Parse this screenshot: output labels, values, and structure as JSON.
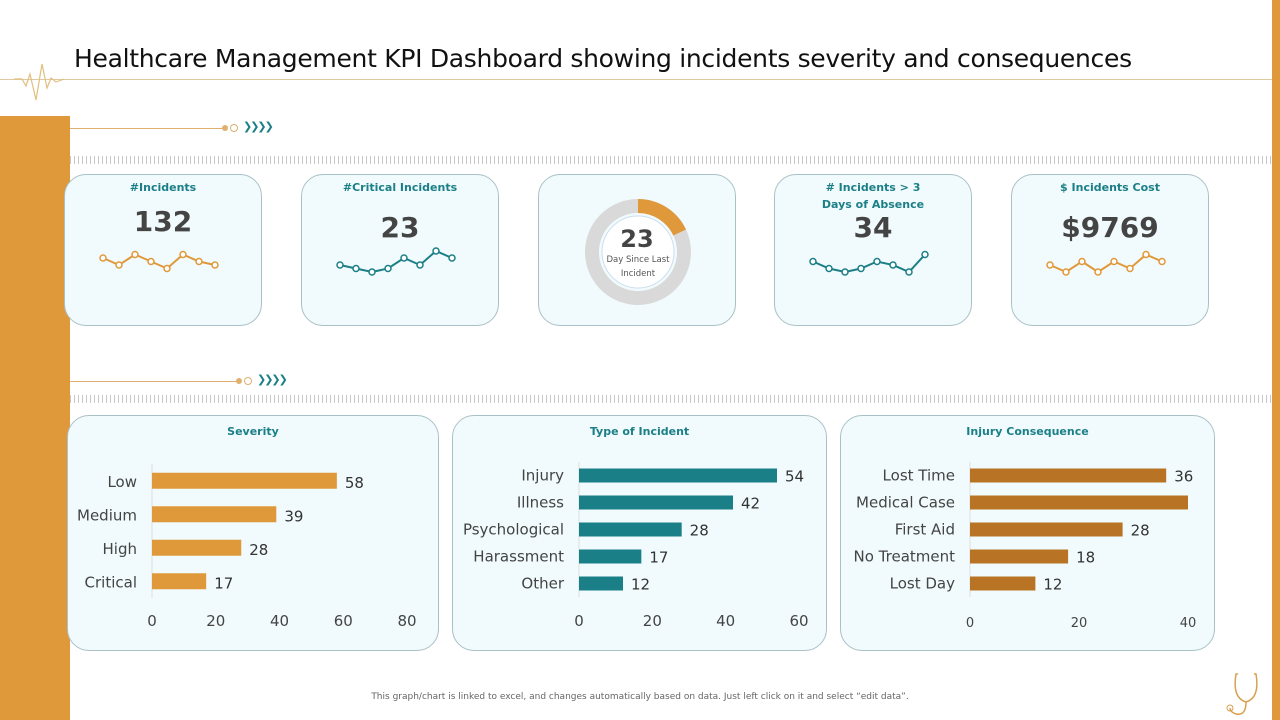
{
  "title": "Healthcare Management KPI Dashboard showing incidents severity and consequences",
  "colors": {
    "orange": "#e0993a",
    "teal": "#1a7f86",
    "brown": "#b87424",
    "card_bg": "#f1fbfd"
  },
  "kpis": [
    {
      "label": "#Incidents",
      "value": "132",
      "spark": [
        6,
        4,
        7,
        5,
        3,
        7,
        5,
        4
      ],
      "color": "#e0993a"
    },
    {
      "label": "#Critical Incidents",
      "value": "23",
      "spark": [
        4,
        3,
        2,
        3,
        6,
        4,
        8,
        6
      ],
      "color": "#1a7f86"
    },
    {
      "donut_value": "23",
      "donut_label": "Day Since Last Incident",
      "fraction": 0.18
    },
    {
      "label": "# Incidents > 3 Days of Absence",
      "value": "34",
      "spark": [
        5,
        3,
        2,
        3,
        5,
        4,
        2,
        7
      ],
      "color": "#1a7f86"
    },
    {
      "label": "$ Incidents Cost",
      "value": "$9769",
      "spark": [
        4,
        2,
        5,
        2,
        5,
        3,
        7,
        5
      ],
      "color": "#e0993a"
    }
  ],
  "chart_data": [
    {
      "type": "bar",
      "title": "Severity",
      "categories": [
        "Low",
        "Medium",
        "High",
        "Critical"
      ],
      "values": [
        58,
        39,
        28,
        17
      ],
      "labels": [
        "58",
        "39",
        "28",
        "17"
      ],
      "xticks": [
        "0",
        "20",
        "40",
        "60",
        "80"
      ],
      "xlim": [
        0,
        80
      ],
      "color": "#e0993a"
    },
    {
      "type": "bar",
      "title": "Type of Incident",
      "categories": [
        "Injury",
        "Illness",
        "Psychological",
        "Harassment",
        "Other"
      ],
      "values": [
        54,
        42,
        28,
        17,
        12
      ],
      "labels": [
        "54",
        "42",
        "28",
        "17",
        "12"
      ],
      "xticks": [
        "0",
        "20",
        "40",
        "60"
      ],
      "xlim": [
        0,
        60
      ],
      "color": "#1a7f86"
    },
    {
      "type": "bar",
      "title": "Injury Consequence",
      "categories": [
        "Lost Time",
        "Medical Case",
        "First Aid",
        "No Treatment",
        "Lost Day"
      ],
      "values": [
        36,
        40,
        28,
        18,
        12
      ],
      "labels": [
        "36",
        "",
        "28",
        "18",
        "12"
      ],
      "xticks": [
        "0",
        "20",
        "40"
      ],
      "xlim": [
        0,
        40
      ],
      "color": "#b87424"
    }
  ],
  "footer": "This graph/chart is linked to excel, and changes automatically based on data. Just left click on it and select “edit data”."
}
